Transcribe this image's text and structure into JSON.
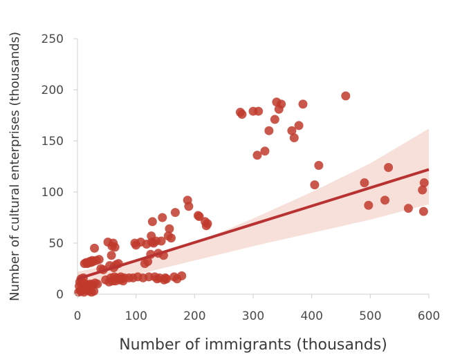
{
  "chart_data": {
    "type": "scatter",
    "title": "",
    "xlabel": "Number of immigrants (thousands)",
    "ylabel": "Number of cultural enterprises (thousands)",
    "xlim": [
      0,
      600
    ],
    "ylim": [
      0,
      250
    ],
    "xticks": [
      "0",
      "100",
      "200",
      "300",
      "400",
      "500",
      "600"
    ],
    "yticks": [
      "0",
      "50",
      "100",
      "150",
      "200",
      "250"
    ],
    "grid": false,
    "legend": "none",
    "colors": {
      "points": "#c0392b",
      "line": "#b83232",
      "band": "#e8a596"
    },
    "regression": {
      "x": [
        0,
        600
      ],
      "y": [
        15,
        122
      ]
    },
    "confidence_band": {
      "x": [
        0,
        100,
        200,
        300,
        400,
        500,
        600
      ],
      "upper": [
        22,
        34,
        50,
        74,
        100,
        128,
        162
      ],
      "lower": [
        9,
        19,
        33,
        47,
        60,
        73,
        88
      ]
    },
    "points": [
      {
        "x": 2,
        "y": 2
      },
      {
        "x": 3,
        "y": 8
      },
      {
        "x": 4,
        "y": 12
      },
      {
        "x": 5,
        "y": 3
      },
      {
        "x": 6,
        "y": 15
      },
      {
        "x": 7,
        "y": 5
      },
      {
        "x": 8,
        "y": 10
      },
      {
        "x": 9,
        "y": 4
      },
      {
        "x": 10,
        "y": 16
      },
      {
        "x": 11,
        "y": 2
      },
      {
        "x": 12,
        "y": 30
      },
      {
        "x": 14,
        "y": 10
      },
      {
        "x": 15,
        "y": 31
      },
      {
        "x": 16,
        "y": 4
      },
      {
        "x": 17,
        "y": 30
      },
      {
        "x": 18,
        "y": 9
      },
      {
        "x": 19,
        "y": 31
      },
      {
        "x": 20,
        "y": 3
      },
      {
        "x": 21,
        "y": 32
      },
      {
        "x": 22,
        "y": 10
      },
      {
        "x": 23,
        "y": 31
      },
      {
        "x": 24,
        "y": 2
      },
      {
        "x": 25,
        "y": 33
      },
      {
        "x": 26,
        "y": 9
      },
      {
        "x": 27,
        "y": 32
      },
      {
        "x": 28,
        "y": 3
      },
      {
        "x": 29,
        "y": 45
      },
      {
        "x": 30,
        "y": 11
      },
      {
        "x": 32,
        "y": 33
      },
      {
        "x": 34,
        "y": 10
      },
      {
        "x": 37,
        "y": 34
      },
      {
        "x": 40,
        "y": 25
      },
      {
        "x": 44,
        "y": 24
      },
      {
        "x": 48,
        "y": 14
      },
      {
        "x": 52,
        "y": 51
      },
      {
        "x": 54,
        "y": 12
      },
      {
        "x": 55,
        "y": 28
      },
      {
        "x": 57,
        "y": 16
      },
      {
        "x": 58,
        "y": 38
      },
      {
        "x": 59,
        "y": 47
      },
      {
        "x": 60,
        "y": 13
      },
      {
        "x": 61,
        "y": 50
      },
      {
        "x": 62,
        "y": 26
      },
      {
        "x": 63,
        "y": 17
      },
      {
        "x": 64,
        "y": 46
      },
      {
        "x": 65,
        "y": 13
      },
      {
        "x": 66,
        "y": 29
      },
      {
        "x": 68,
        "y": 16
      },
      {
        "x": 70,
        "y": 30
      },
      {
        "x": 72,
        "y": 14
      },
      {
        "x": 74,
        "y": 17
      },
      {
        "x": 76,
        "y": 15
      },
      {
        "x": 78,
        "y": 13
      },
      {
        "x": 80,
        "y": 16
      },
      {
        "x": 88,
        "y": 16
      },
      {
        "x": 95,
        "y": 16
      },
      {
        "x": 98,
        "y": 50
      },
      {
        "x": 100,
        "y": 48
      },
      {
        "x": 103,
        "y": 17
      },
      {
        "x": 108,
        "y": 51
      },
      {
        "x": 112,
        "y": 16
      },
      {
        "x": 115,
        "y": 30
      },
      {
        "x": 118,
        "y": 49
      },
      {
        "x": 120,
        "y": 32
      },
      {
        "x": 122,
        "y": 17
      },
      {
        "x": 125,
        "y": 39
      },
      {
        "x": 126,
        "y": 57
      },
      {
        "x": 127,
        "y": 51
      },
      {
        "x": 128,
        "y": 71
      },
      {
        "x": 130,
        "y": 50
      },
      {
        "x": 132,
        "y": 17
      },
      {
        "x": 134,
        "y": 52
      },
      {
        "x": 136,
        "y": 15
      },
      {
        "x": 138,
        "y": 40
      },
      {
        "x": 140,
        "y": 16
      },
      {
        "x": 143,
        "y": 52
      },
      {
        "x": 145,
        "y": 75
      },
      {
        "x": 147,
        "y": 38
      },
      {
        "x": 148,
        "y": 14
      },
      {
        "x": 150,
        "y": 16
      },
      {
        "x": 152,
        "y": 15
      },
      {
        "x": 155,
        "y": 57
      },
      {
        "x": 157,
        "y": 64
      },
      {
        "x": 160,
        "y": 55
      },
      {
        "x": 165,
        "y": 17
      },
      {
        "x": 167,
        "y": 80
      },
      {
        "x": 170,
        "y": 15
      },
      {
        "x": 178,
        "y": 18
      },
      {
        "x": 188,
        "y": 92
      },
      {
        "x": 190,
        "y": 86
      },
      {
        "x": 206,
        "y": 77
      },
      {
        "x": 208,
        "y": 76
      },
      {
        "x": 218,
        "y": 71
      },
      {
        "x": 220,
        "y": 67
      },
      {
        "x": 222,
        "y": 69
      },
      {
        "x": 278,
        "y": 178
      },
      {
        "x": 281,
        "y": 176
      },
      {
        "x": 300,
        "y": 179
      },
      {
        "x": 307,
        "y": 136
      },
      {
        "x": 309,
        "y": 179
      },
      {
        "x": 320,
        "y": 140
      },
      {
        "x": 327,
        "y": 160
      },
      {
        "x": 337,
        "y": 171
      },
      {
        "x": 340,
        "y": 188
      },
      {
        "x": 344,
        "y": 181
      },
      {
        "x": 348,
        "y": 186
      },
      {
        "x": 366,
        "y": 160
      },
      {
        "x": 370,
        "y": 153
      },
      {
        "x": 378,
        "y": 165
      },
      {
        "x": 385,
        "y": 186
      },
      {
        "x": 405,
        "y": 107
      },
      {
        "x": 412,
        "y": 126
      },
      {
        "x": 458,
        "y": 194
      },
      {
        "x": 490,
        "y": 109
      },
      {
        "x": 497,
        "y": 87
      },
      {
        "x": 525,
        "y": 92
      },
      {
        "x": 531,
        "y": 124
      },
      {
        "x": 565,
        "y": 84
      },
      {
        "x": 589,
        "y": 102
      },
      {
        "x": 591,
        "y": 81
      },
      {
        "x": 592,
        "y": 109
      }
    ]
  }
}
